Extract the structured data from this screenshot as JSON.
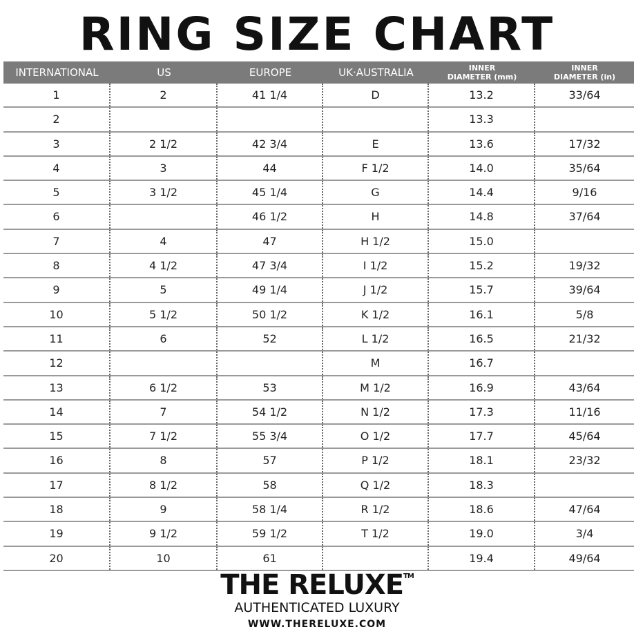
{
  "title": "RING SIZE CHART",
  "headers": [
    "INTERNATIONAL",
    "US",
    "EUROPE",
    "UK·AUSTRALIA",
    [
      "INNER",
      "DIAMETER (mm)"
    ],
    [
      "INNER",
      "DIAMETER (in)"
    ]
  ],
  "rows": [
    [
      "1",
      "2",
      "41 1/4",
      "D",
      "13.2",
      "33/64"
    ],
    [
      "2",
      "",
      "",
      "",
      "13.3",
      ""
    ],
    [
      "3",
      "2 1/2",
      "42 3/4",
      "E",
      "13.6",
      "17/32"
    ],
    [
      "4",
      "3",
      "44",
      "F 1/2",
      "14.0",
      "35/64"
    ],
    [
      "5",
      "3 1/2",
      "45 1/4",
      "G",
      "14.4",
      "9/16"
    ],
    [
      "6",
      "",
      "46 1/2",
      "H",
      "14.8",
      "37/64"
    ],
    [
      "7",
      "4",
      "47",
      "H 1/2",
      "15.0",
      ""
    ],
    [
      "8",
      "4 1/2",
      "47 3/4",
      "I 1/2",
      "15.2",
      "19/32"
    ],
    [
      "9",
      "5",
      "49 1/4",
      "J 1/2",
      "15.7",
      "39/64"
    ],
    [
      "10",
      "5 1/2",
      "50 1/2",
      "K 1/2",
      "16.1",
      "5/8"
    ],
    [
      "11",
      "6",
      "52",
      "L 1/2",
      "16.5",
      "21/32"
    ],
    [
      "12",
      "",
      "",
      "M",
      "16.7",
      ""
    ],
    [
      "13",
      "6 1/2",
      "53",
      "M 1/2",
      "16.9",
      "43/64"
    ],
    [
      "14",
      "7",
      "54 1/2",
      "N 1/2",
      "17.3",
      "11/16"
    ],
    [
      "15",
      "7 1/2",
      "55 3/4",
      "O 1/2",
      "17.7",
      "45/64"
    ],
    [
      "16",
      "8",
      "57",
      "P 1/2",
      "18.1",
      "23/32"
    ],
    [
      "17",
      "8 1/2",
      "58",
      "Q 1/2",
      "18.3",
      ""
    ],
    [
      "18",
      "9",
      "58 1/4",
      "R 1/2",
      "18.6",
      "47/64"
    ],
    [
      "19",
      "9 1/2",
      "59 1/2",
      "T 1/2",
      "19.0",
      "3/4"
    ],
    [
      "20",
      "10",
      "61",
      "",
      "19.4",
      "49/64"
    ]
  ],
  "brand": {
    "name": "THE RELUXE",
    "tm": "TM",
    "tagline": "AUTHENTICATED LUXURY",
    "url": "WWW.THERELUXE.COM"
  },
  "colors": {
    "header_bg": "#7b7b7b",
    "header_text": "#ffffff"
  }
}
